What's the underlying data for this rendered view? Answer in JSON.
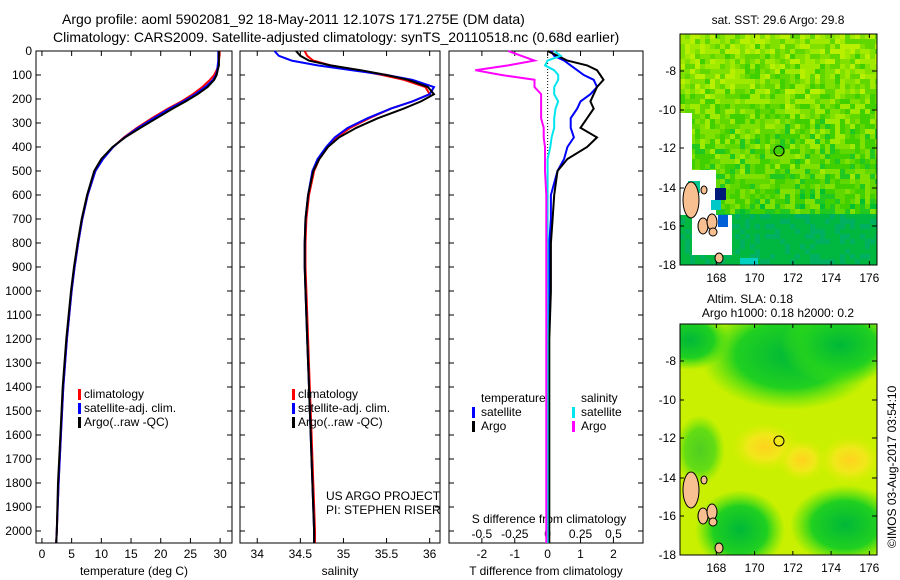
{
  "title": {
    "line1": "Argo profile: aoml 5902081_92 18-May-2011 12.107S 171.275E (DM data)",
    "line2": "Climatology: CARS2009. Satellite-adjusted climatology: synTS_20110518.nc (0.68d earlier)"
  },
  "colors": {
    "climatology": "#ff0000",
    "satellite": "#0000ff",
    "argo": "#000000",
    "s_satellite": "#00e5ee",
    "s_argo": "#ff00ff"
  },
  "depth_ticks": [
    0,
    100,
    200,
    300,
    400,
    500,
    600,
    700,
    800,
    900,
    1000,
    1100,
    1200,
    1300,
    1400,
    1500,
    1600,
    1700,
    1800,
    1900,
    2000
  ],
  "chart_data": [
    {
      "type": "line",
      "name": "temperature",
      "xlabel": "temperature (deg C)",
      "ylabel": "depth",
      "xlim": [
        -1,
        32
      ],
      "ylim": [
        2050,
        0
      ],
      "xticks": [
        0,
        5,
        10,
        15,
        20,
        25,
        30
      ],
      "legend": [
        "climatology",
        "satellite-adj. clim.",
        "Argo(..raw -QC)"
      ],
      "legend_placement": "bottom-center",
      "depth": [
        0,
        20,
        40,
        60,
        80,
        100,
        120,
        150,
        180,
        210,
        240,
        280,
        320,
        360,
        400,
        450,
        500,
        600,
        700,
        800,
        900,
        1000,
        1200,
        1400,
        1600,
        1800,
        2000,
        2050
      ],
      "series": [
        {
          "name": "climatology",
          "values": [
            29.9,
            29.9,
            29.8,
            29.7,
            29.4,
            29.0,
            28.3,
            27.0,
            25.4,
            23.5,
            21.2,
            18.5,
            16.0,
            13.8,
            12.0,
            10.2,
            9.0,
            7.7,
            6.8,
            6.1,
            5.5,
            5.0,
            4.2,
            3.6,
            3.2,
            2.8,
            2.5,
            2.4
          ]
        },
        {
          "name": "satellite",
          "values": [
            29.7,
            29.7,
            29.7,
            29.6,
            29.5,
            29.3,
            28.8,
            27.5,
            25.8,
            23.8,
            21.5,
            18.8,
            16.2,
            13.9,
            12.0,
            10.3,
            9.0,
            7.7,
            6.8,
            6.1,
            5.5,
            5.0,
            4.2,
            3.6,
            3.2,
            2.8,
            2.5,
            2.4
          ]
        },
        {
          "name": "argo",
          "values": [
            29.8,
            29.8,
            29.8,
            29.8,
            29.6,
            29.4,
            29.0,
            27.9,
            26.2,
            24.2,
            22.0,
            19.3,
            16.6,
            14.0,
            11.9,
            10.0,
            8.8,
            7.6,
            6.7,
            6.0,
            5.4,
            4.9,
            4.1,
            3.5,
            3.1,
            2.7,
            2.5,
            2.4
          ]
        }
      ]
    },
    {
      "type": "line",
      "name": "salinity",
      "xlabel": "salinity",
      "xlim": [
        33.8,
        36.12
      ],
      "ylim": [
        2050,
        0
      ],
      "xticks": [
        "34",
        "34.5",
        "35",
        "35.5",
        "36"
      ],
      "legend": [
        "climatology",
        "satellite-adj. clim.",
        "Argo(..raw -QC)"
      ],
      "annotation": [
        "US ARGO PROJECT",
        "PI: STEPHEN RISER"
      ],
      "depth": [
        0,
        20,
        40,
        60,
        80,
        100,
        120,
        150,
        180,
        210,
        240,
        280,
        320,
        360,
        400,
        450,
        500,
        600,
        700,
        800,
        900,
        1000,
        1200,
        1400,
        1600,
        1800,
        2000,
        2050
      ],
      "series": [
        {
          "name": "climatology",
          "values": [
            34.55,
            34.58,
            34.65,
            34.85,
            35.15,
            35.45,
            35.7,
            35.95,
            36.0,
            35.8,
            35.55,
            35.3,
            35.08,
            34.92,
            34.82,
            34.72,
            34.66,
            34.6,
            34.57,
            34.56,
            34.56,
            34.57,
            34.59,
            34.61,
            34.63,
            34.65,
            34.67,
            34.67
          ]
        },
        {
          "name": "satellite",
          "values": [
            34.2,
            34.25,
            34.4,
            34.7,
            35.1,
            35.5,
            35.8,
            36.05,
            36.0,
            35.8,
            35.55,
            35.28,
            35.05,
            34.9,
            34.8,
            34.7,
            34.64,
            34.59,
            34.56,
            34.55,
            34.55,
            34.56,
            34.58,
            34.6,
            34.62,
            34.64,
            34.66,
            34.66
          ]
        },
        {
          "name": "argo",
          "values": [
            34.45,
            34.5,
            34.6,
            34.85,
            35.2,
            35.5,
            35.75,
            35.98,
            36.05,
            35.9,
            35.7,
            35.4,
            35.15,
            34.95,
            34.82,
            34.72,
            34.65,
            34.59,
            34.56,
            34.55,
            34.55,
            34.56,
            34.58,
            34.6,
            34.62,
            34.64,
            34.66,
            34.66
          ]
        }
      ]
    },
    {
      "type": "line",
      "name": "difference",
      "xlabel": "T difference from climatology",
      "xlabel_top": "S difference from climatology",
      "xlim": [
        -3,
        2.9
      ],
      "ylim": [
        2050,
        0
      ],
      "xticks": [
        "-2",
        "-1",
        "0",
        "1",
        "2"
      ],
      "xticks_s": [
        "-0.5",
        "-0.25",
        "0",
        "0.25",
        "0.5"
      ],
      "s_scale": 4,
      "legend_t_title": "temperature",
      "legend_s_title": "salinity",
      "legend_t": [
        "satellite",
        "Argo"
      ],
      "legend_s": [
        "satellite",
        "Argo"
      ],
      "depth": [
        0,
        20,
        40,
        60,
        80,
        100,
        120,
        150,
        180,
        210,
        240,
        280,
        320,
        360,
        400,
        450,
        500,
        600,
        700,
        800,
        900,
        1000,
        1200,
        1400,
        1600,
        1800,
        2000,
        2050
      ],
      "series": [
        {
          "name": "T satellite",
          "values": [
            0.1,
            0.2,
            0.5,
            0.7,
            0.9,
            1.1,
            1.4,
            1.5,
            1.3,
            1.0,
            0.9,
            0.7,
            0.7,
            0.8,
            0.6,
            0.5,
            0.3,
            0.1,
            0.1,
            0.05,
            0.05,
            0.05,
            0.0,
            0.0,
            0.0,
            0.0,
            0.0,
            0.0
          ]
        },
        {
          "name": "T argo",
          "values": [
            0.0,
            0.3,
            0.6,
            1.2,
            1.5,
            1.6,
            1.7,
            1.5,
            1.4,
            1.3,
            1.4,
            1.2,
            1.0,
            1.5,
            1.2,
            0.6,
            0.3,
            0.2,
            0.15,
            0.1,
            0.1,
            0.1,
            0.05,
            0.05,
            0.05,
            0.05,
            0.05,
            0.05
          ]
        },
        {
          "name": "S satellite",
          "values": [
            0.05,
            0.1,
            0.0,
            -0.02,
            0.05,
            0.08,
            0.08,
            0.05,
            0.05,
            0.08,
            0.06,
            0.05,
            0.05,
            0.03,
            0.02,
            0.0,
            0.0,
            0.0,
            0.0,
            0.0,
            0.0,
            0.0,
            0.0,
            0.0,
            0.0,
            0.0,
            0.0,
            0.0
          ]
        },
        {
          "name": "S argo",
          "values": [
            -0.3,
            -0.2,
            -0.1,
            -0.3,
            -0.55,
            -0.35,
            -0.1,
            -0.1,
            -0.05,
            -0.05,
            -0.05,
            -0.05,
            -0.03,
            -0.03,
            -0.02,
            -0.02,
            -0.02,
            -0.01,
            -0.01,
            -0.01,
            -0.01,
            -0.01,
            -0.01,
            -0.01,
            -0.01,
            -0.01,
            -0.01,
            -0.01
          ]
        }
      ]
    }
  ],
  "maps": [
    {
      "title": "sat. SST: 29.6 Argo: 29.8",
      "lon_ticks": [
        "168",
        "170",
        "172",
        "174",
        "176"
      ],
      "lat_ticks": [
        "-8",
        "-10",
        "-12",
        "-14",
        "-16",
        "-18"
      ],
      "marker": {
        "lon": 171.275,
        "lat": -12.107
      }
    },
    {
      "title": "Altim. SLA: 0.18",
      "subtitle": "Argo h1000: 0.18 h2000: 0.2",
      "lon_ticks": [
        "168",
        "170",
        "172",
        "174",
        "176"
      ],
      "lat_ticks": [
        "-8",
        "-10",
        "-12",
        "-14",
        "-16",
        "-18"
      ],
      "marker": {
        "lon": 171.275,
        "lat": -12.107
      }
    }
  ],
  "credit": "©IMOS 03-Aug-2017 03:54:10"
}
